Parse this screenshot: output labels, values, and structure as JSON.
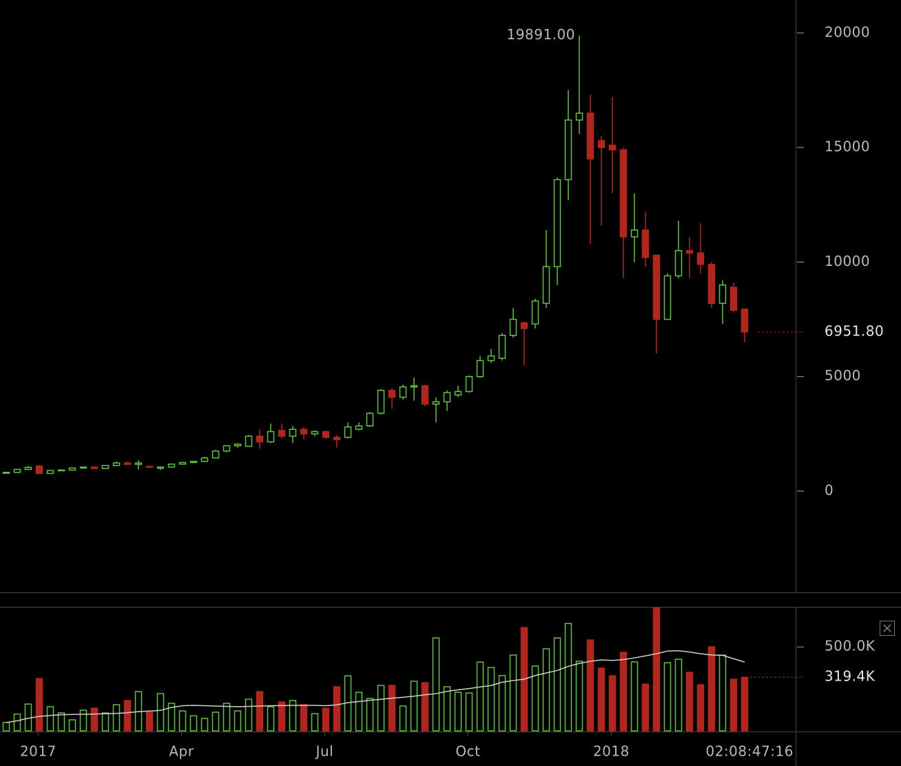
{
  "chart_data": [
    {
      "type": "candlestick",
      "x": [
        0,
        1,
        2,
        3,
        4,
        5,
        6,
        7,
        8,
        9,
        10,
        11,
        12,
        13,
        14,
        15,
        16,
        17,
        18,
        19,
        20,
        21,
        22,
        23,
        24,
        25,
        26,
        27,
        28,
        29,
        30,
        31,
        32,
        33,
        34,
        35,
        36,
        37,
        38,
        39,
        40,
        41,
        42,
        43,
        44,
        45,
        46,
        47,
        48,
        49,
        50,
        51,
        52,
        53,
        54,
        55,
        56,
        57,
        58,
        59,
        60,
        61,
        62,
        63,
        64,
        65,
        66,
        67
      ],
      "open": [
        780,
        820,
        950,
        1100,
        770,
        900,
        920,
        1010,
        1050,
        990,
        1120,
        1230,
        1170,
        1080,
        1000,
        1050,
        1180,
        1250,
        1300,
        1450,
        1750,
        1980,
        1960,
        2400,
        2150,
        2650,
        2400,
        2700,
        2500,
        2600,
        2350,
        2350,
        2700,
        2850,
        3400,
        4400,
        4100,
        4550,
        4600,
        3800,
        3900,
        4200,
        4350,
        5000,
        5700,
        5800,
        6800,
        7350,
        7300,
        8200,
        9800,
        13600,
        16200,
        16500,
        15300,
        15100,
        14900,
        11100,
        11400,
        10300,
        7500,
        9400,
        10500,
        10400,
        9900,
        8200,
        8900,
        7950
      ],
      "high": [
        830,
        970,
        1100,
        1130,
        920,
        950,
        1030,
        1080,
        1070,
        1140,
        1290,
        1300,
        1350,
        1100,
        1080,
        1200,
        1280,
        1330,
        1500,
        1800,
        2000,
        2100,
        2450,
        2700,
        2950,
        2950,
        2850,
        2800,
        2650,
        2650,
        2450,
        3000,
        3000,
        3450,
        4450,
        4500,
        4650,
        4950,
        4650,
        4100,
        4400,
        4600,
        5050,
        5900,
        6200,
        6900,
        8000,
        7400,
        8400,
        11400,
        13700,
        17500,
        19891,
        17300,
        15500,
        17200,
        15000,
        13000,
        12200,
        10300,
        9500,
        11800,
        11100,
        11700,
        10000,
        9200,
        9100,
        7950
      ],
      "low": [
        770,
        810,
        930,
        750,
        760,
        880,
        900,
        990,
        970,
        980,
        1100,
        1150,
        950,
        1020,
        930,
        1020,
        1160,
        1220,
        1280,
        1430,
        1700,
        1900,
        1940,
        1850,
        2100,
        2300,
        2100,
        2250,
        2400,
        2300,
        1900,
        2300,
        2650,
        2800,
        3350,
        3600,
        4000,
        3950,
        3700,
        3000,
        3500,
        4100,
        4300,
        4950,
        5600,
        5700,
        6700,
        5500,
        7100,
        8000,
        9000,
        12700,
        15600,
        10800,
        11600,
        13000,
        9300,
        10000,
        9800,
        6000,
        7500,
        9300,
        9300,
        9500,
        8000,
        7300,
        7800,
        6500
      ],
      "close": [
        820,
        950,
        1040,
        770,
        900,
        920,
        1010,
        1050,
        990,
        1120,
        1230,
        1170,
        1230,
        1040,
        1050,
        1180,
        1250,
        1300,
        1450,
        1750,
        1980,
        2050,
        2400,
        2150,
        2600,
        2400,
        2700,
        2500,
        2600,
        2350,
        2250,
        2800,
        2850,
        3400,
        4400,
        4100,
        4550,
        4600,
        3800,
        3900,
        4300,
        4350,
        5000,
        5700,
        5900,
        6800,
        7500,
        7100,
        8300,
        9800,
        13600,
        16200,
        16500,
        14500,
        15000,
        14900,
        11100,
        11400,
        10200,
        7500,
        9400,
        10500,
        10400,
        9900,
        8200,
        9000,
        7900,
        6951.8
      ],
      "up_color": "#5ec43c",
      "down_color": "#b3261e",
      "xlim": [
        -0.5625,
        71.625
      ],
      "xticks": [
        {
          "value": 2.9,
          "label": "2017"
        },
        {
          "value": 15.9,
          "label": "Apr"
        },
        {
          "value": 28.9,
          "label": "Jul"
        },
        {
          "value": 41.9,
          "label": "Oct"
        },
        {
          "value": 54.9,
          "label": "2018"
        }
      ],
      "ylim": [
        -4420,
        21440
      ],
      "yticks": [
        0,
        5000,
        10000,
        15000,
        20000
      ],
      "peak_label": "19891.00",
      "last_label": "6951.80",
      "countdown": "02:08:47:16"
    },
    {
      "type": "bar",
      "values": [
        50000,
        100000,
        160000,
        312000,
        144000,
        107000,
        66000,
        123000,
        135000,
        107000,
        156000,
        181000,
        234000,
        111000,
        222000,
        164000,
        119000,
        90000,
        74000,
        111000,
        164000,
        119000,
        189000,
        234000,
        144000,
        172000,
        181000,
        156000,
        103000,
        135000,
        263000,
        328000,
        230000,
        193000,
        271000,
        271000,
        148000,
        296000,
        287000,
        554000,
        263000,
        230000,
        226000,
        410000,
        378000,
        330000,
        452000,
        616000,
        386000,
        489000,
        554000,
        640000,
        415000,
        542000,
        374000,
        328000,
        468000,
        411000,
        279000,
        743000,
        406000,
        427000,
        349000,
        275000,
        501000,
        452000,
        308000,
        319400
      ],
      "moving_average": [
        50000,
        60000,
        75000,
        86000,
        92000,
        96000,
        98000,
        99000,
        100000,
        102000,
        104000,
        108000,
        115000,
        118000,
        122000,
        140000,
        150000,
        152000,
        150000,
        148000,
        146000,
        144000,
        146000,
        148000,
        150000,
        151000,
        152000,
        152000,
        152000,
        150000,
        155000,
        168000,
        175000,
        182000,
        188000,
        195000,
        200000,
        207000,
        215000,
        222000,
        235000,
        245000,
        252000,
        262000,
        270000,
        290000,
        300000,
        308000,
        330000,
        345000,
        360000,
        385000,
        402000,
        415000,
        423000,
        420000,
        425000,
        435000,
        447000,
        460000,
        476000,
        478000,
        470000,
        460000,
        452000,
        450000,
        430000,
        410000
      ],
      "ma_color": "#cfcfcf",
      "ylim": [
        0,
        735000
      ],
      "yticks": [
        {
          "value": 500000,
          "label": "500.0K"
        }
      ],
      "last_label": "319.4K"
    }
  ]
}
